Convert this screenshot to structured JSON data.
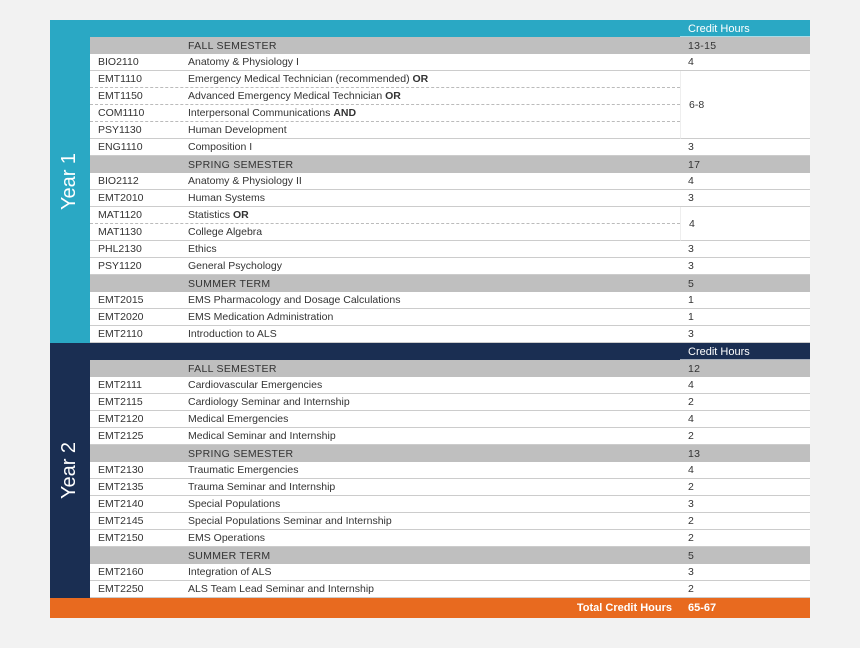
{
  "colors": {
    "year1_tab": "#2aa8c4",
    "year1_header": "#2aa8c4",
    "year2_tab": "#1a2e52",
    "year2_header": "#1a2e52",
    "semester_header": "#bfbfbf",
    "footer": "#e86a1f",
    "row_border": "#cccccc",
    "dashed_border": "#bbbbbb",
    "page_bg": "#f2f2f2"
  },
  "credit_hours_label": "Credit Hours",
  "footer": {
    "label": "Total Credit Hours",
    "value": "65-67"
  },
  "years": [
    {
      "label": "Year 1",
      "tab_color": "#2aa8c4",
      "header_color": "#2aa8c4",
      "semesters": [
        {
          "name": "FALL SEMESTER",
          "credits": "13-15",
          "groups": [
            {
              "credits": "4",
              "courses": [
                {
                  "code": "BIO2110",
                  "name": "Anatomy & Physiology I"
                }
              ]
            },
            {
              "credits": "6-8",
              "courses": [
                {
                  "code": "EMT1110",
                  "name": "Emergency Medical Technician (recommended)",
                  "conj": "OR"
                },
                {
                  "code": "EMT1150",
                  "name": "Advanced Emergency  Medical Technician",
                  "conj": "OR"
                },
                {
                  "code": "COM1110",
                  "name": "Interpersonal Communications",
                  "conj": "AND"
                },
                {
                  "code": "PSY1130",
                  "name": "Human Development"
                }
              ]
            },
            {
              "credits": "3",
              "courses": [
                {
                  "code": "ENG1110",
                  "name": "Composition I"
                }
              ]
            }
          ]
        },
        {
          "name": "SPRING SEMESTER",
          "credits": "17",
          "groups": [
            {
              "credits": "4",
              "courses": [
                {
                  "code": "BIO2112",
                  "name": "Anatomy & Physiology II"
                }
              ]
            },
            {
              "credits": "3",
              "courses": [
                {
                  "code": "EMT2010",
                  "name": "Human Systems"
                }
              ]
            },
            {
              "credits": "4",
              "courses": [
                {
                  "code": "MAT1120",
                  "name": "Statistics",
                  "conj": "OR"
                },
                {
                  "code": "MAT1130",
                  "name": "College Algebra"
                }
              ]
            },
            {
              "credits": "3",
              "courses": [
                {
                  "code": "PHL2130",
                  "name": "Ethics"
                }
              ]
            },
            {
              "credits": "3",
              "courses": [
                {
                  "code": "PSY1120",
                  "name": "General Psychology"
                }
              ]
            }
          ]
        },
        {
          "name": "SUMMER TERM",
          "credits": "5",
          "groups": [
            {
              "credits": "1",
              "courses": [
                {
                  "code": "EMT2015",
                  "name": "EMS Pharmacology and Dosage Calculations"
                }
              ]
            },
            {
              "credits": "1",
              "courses": [
                {
                  "code": "EMT2020",
                  "name": "EMS Medication Administration"
                }
              ]
            },
            {
              "credits": "3",
              "courses": [
                {
                  "code": "EMT2110",
                  "name": "Introduction to ALS"
                }
              ]
            }
          ]
        }
      ]
    },
    {
      "label": "Year 2",
      "tab_color": "#1a2e52",
      "header_color": "#1a2e52",
      "semesters": [
        {
          "name": "FALL SEMESTER",
          "credits": "12",
          "groups": [
            {
              "credits": "4",
              "courses": [
                {
                  "code": "EMT2111",
                  "name": "Cardiovascular Emergencies"
                }
              ]
            },
            {
              "credits": "2",
              "courses": [
                {
                  "code": "EMT2115",
                  "name": "Cardiology Seminar and Internship"
                }
              ]
            },
            {
              "credits": "4",
              "courses": [
                {
                  "code": "EMT2120",
                  "name": "Medical Emergencies"
                }
              ]
            },
            {
              "credits": "2",
              "courses": [
                {
                  "code": "EMT2125",
                  "name": "Medical Seminar and Internship"
                }
              ]
            }
          ]
        },
        {
          "name": "SPRING SEMESTER",
          "credits": "13",
          "groups": [
            {
              "credits": "4",
              "courses": [
                {
                  "code": "EMT2130",
                  "name": "Traumatic Emergencies"
                }
              ]
            },
            {
              "credits": "2",
              "courses": [
                {
                  "code": "EMT2135",
                  "name": "Trauma Seminar and Internship"
                }
              ]
            },
            {
              "credits": "3",
              "courses": [
                {
                  "code": "EMT2140",
                  "name": "Special Populations"
                }
              ]
            },
            {
              "credits": "2",
              "courses": [
                {
                  "code": "EMT2145",
                  "name": "Special Populations Seminar and Internship"
                }
              ]
            },
            {
              "credits": "2",
              "courses": [
                {
                  "code": "EMT2150",
                  "name": "EMS Operations"
                }
              ]
            }
          ]
        },
        {
          "name": "SUMMER TERM",
          "credits": "5",
          "groups": [
            {
              "credits": "3",
              "courses": [
                {
                  "code": "EMT2160",
                  "name": "Integration of ALS"
                }
              ]
            },
            {
              "credits": "2",
              "courses": [
                {
                  "code": "EMT2250",
                  "name": "ALS Team Lead Seminar and Internship"
                }
              ]
            }
          ]
        }
      ]
    }
  ]
}
